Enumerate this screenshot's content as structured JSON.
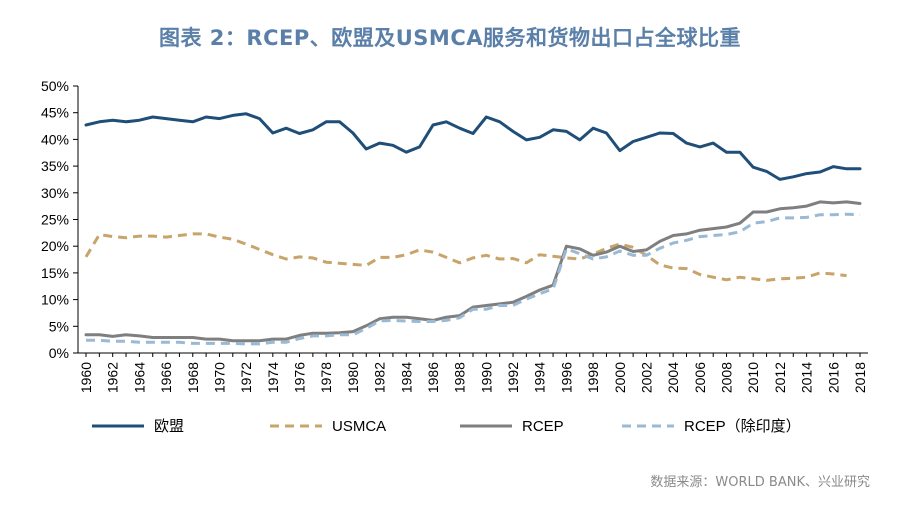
{
  "title": "图表 2：RCEP、欧盟及USMCA服务和货物出口占全球比重",
  "source": "数据来源：WORLD BANK、兴业研究",
  "chart_data": {
    "type": "line",
    "title": "图表 2：RCEP、欧盟及USMCA服务和货物出口占全球比重",
    "xlabel": "",
    "ylabel": "",
    "ylim": [
      0,
      50
    ],
    "y_ticks": [
      "0%",
      "5%",
      "10%",
      "15%",
      "20%",
      "25%",
      "30%",
      "35%",
      "40%",
      "45%",
      "50%"
    ],
    "x_ticks": [
      "1960",
      "1962",
      "1964",
      "1966",
      "1968",
      "1970",
      "1972",
      "1974",
      "1976",
      "1978",
      "1980",
      "1982",
      "1984",
      "1986",
      "1988",
      "1990",
      "1992",
      "1994",
      "1996",
      "1998",
      "2000",
      "2002",
      "2004",
      "2006",
      "2008",
      "2010",
      "2012",
      "2014",
      "2016",
      "2018"
    ],
    "legend_position": "bottom",
    "grid": false,
    "series": [
      {
        "name": "欧盟",
        "color": "#1f4e79",
        "dash": "solid",
        "x_start": 1960,
        "values": [
          42.7,
          43.3,
          43.6,
          43.3,
          43.6,
          44.2,
          43.9,
          43.6,
          43.3,
          44.2,
          43.9,
          44.5,
          44.8,
          43.9,
          41.2,
          42.1,
          41.1,
          41.8,
          43.3,
          43.3,
          41.2,
          38.2,
          39.3,
          38.9,
          37.6,
          38.6,
          42.7,
          43.3,
          42.1,
          41.1,
          44.2,
          43.3,
          41.5,
          39.9,
          40.4,
          41.8,
          41.5,
          39.9,
          42.1,
          41.2,
          37.9,
          39.6,
          40.4,
          41.2,
          41.1,
          39.3,
          38.6,
          39.3,
          37.6,
          37.6,
          34.8,
          34.0,
          32.5,
          33.0,
          33.6,
          33.9,
          34.9,
          34.5,
          34.5
        ]
      },
      {
        "name": "USMCA",
        "color": "#c8a46a",
        "dash": "dashed",
        "x_start": 1960,
        "values": [
          18.0,
          22.2,
          21.8,
          21.6,
          21.9,
          21.9,
          21.7,
          22.0,
          22.3,
          22.3,
          21.7,
          21.3,
          20.4,
          19.4,
          18.4,
          17.6,
          18.0,
          17.8,
          17.0,
          16.8,
          16.6,
          16.4,
          17.9,
          17.9,
          18.4,
          19.3,
          18.9,
          17.9,
          16.9,
          17.8,
          18.3,
          17.6,
          17.7,
          16.9,
          18.4,
          18.1,
          17.8,
          17.6,
          18.5,
          19.6,
          20.4,
          19.8,
          18.3,
          16.5,
          15.9,
          15.8,
          14.7,
          14.2,
          13.7,
          14.2,
          13.9,
          13.6,
          13.9,
          14.0,
          14.2,
          15.0,
          14.8,
          14.5
        ]
      },
      {
        "name": "RCEP",
        "color": "#7f7f7f",
        "dash": "solid",
        "x_start": 1960,
        "values": [
          3.4,
          3.4,
          3.1,
          3.4,
          3.2,
          2.9,
          2.9,
          2.9,
          2.9,
          2.6,
          2.6,
          2.3,
          2.3,
          2.3,
          2.6,
          2.6,
          3.3,
          3.7,
          3.7,
          3.8,
          4.0,
          5.1,
          6.4,
          6.7,
          6.7,
          6.4,
          6.1,
          6.7,
          7.0,
          8.6,
          8.9,
          9.2,
          9.5,
          10.6,
          11.8,
          12.7,
          20.0,
          19.5,
          18.3,
          18.9,
          20.0,
          19.0,
          19.3,
          20.9,
          22.0,
          22.3,
          23.0,
          23.3,
          23.6,
          24.3,
          26.4,
          26.4,
          27.0,
          27.2,
          27.5,
          28.3,
          28.1,
          28.3,
          28.0
        ]
      },
      {
        "name": "RCEP（除印度）",
        "color": "#9ab9d4",
        "dash": "dashed",
        "x_start": 1960,
        "values": [
          2.4,
          2.4,
          2.2,
          2.2,
          2.0,
          2.0,
          2.0,
          2.0,
          1.8,
          1.8,
          1.8,
          1.8,
          1.7,
          1.7,
          2.0,
          2.0,
          2.7,
          3.2,
          3.2,
          3.4,
          3.4,
          4.6,
          6.0,
          6.1,
          6.0,
          5.9,
          5.9,
          6.1,
          6.6,
          8.2,
          8.2,
          8.9,
          8.9,
          10.1,
          11.1,
          12.0,
          19.5,
          18.6,
          17.6,
          18.0,
          19.1,
          18.3,
          18.3,
          19.6,
          20.6,
          21.1,
          21.8,
          22.0,
          22.2,
          22.7,
          24.3,
          24.6,
          25.3,
          25.3,
          25.4,
          25.9,
          25.9,
          26.0,
          25.9
        ]
      }
    ]
  }
}
